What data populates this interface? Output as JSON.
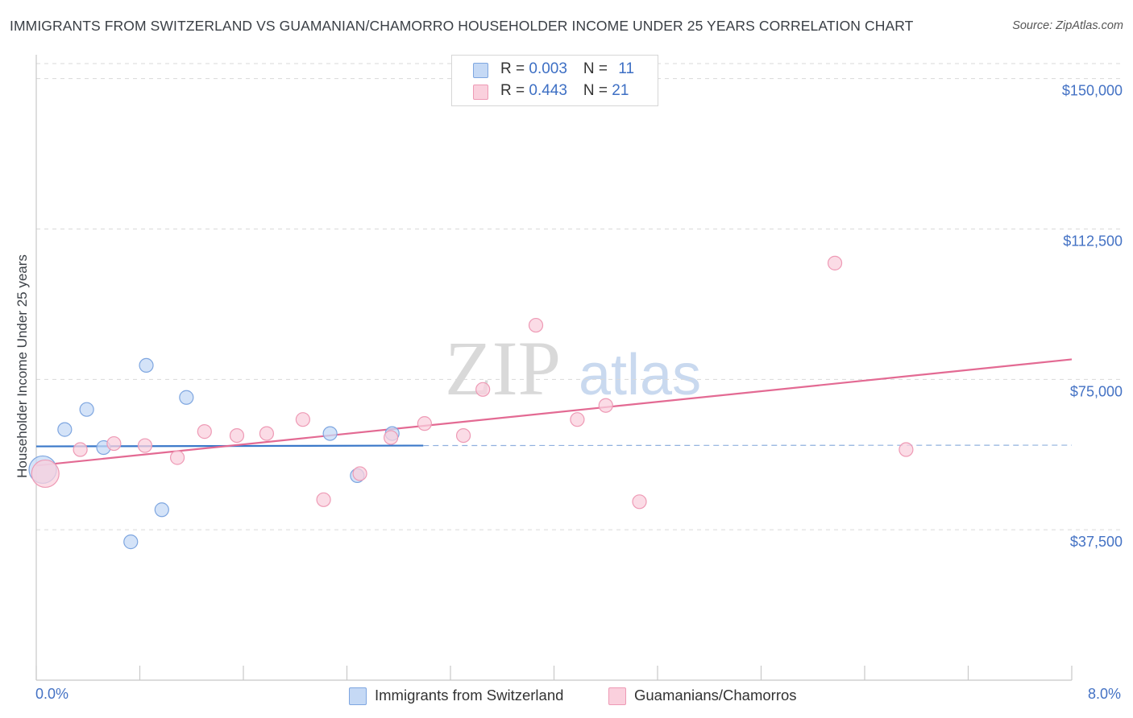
{
  "title": "IMMIGRANTS FROM SWITZERLAND VS GUAMANIAN/CHAMORRO HOUSEHOLDER INCOME UNDER 25 YEARS CORRELATION CHART",
  "source": "Source: ZipAtlas.com",
  "watermark": {
    "zip": "ZIP",
    "atlas": "atlas"
  },
  "colors": {
    "blue_fill": "#c5d9f5",
    "blue_stroke": "#7ea6e0",
    "blue_line": "#3a78c9",
    "pink_fill": "#fad0dd",
    "pink_stroke": "#ee9ab5",
    "pink_line": "#e36a93",
    "axis_text": "#4472c4",
    "grid": "#d9d9d9"
  },
  "legend": {
    "rows": [
      {
        "r_label": "R = ",
        "r_value": "0.003",
        "n_label": "N = ",
        "n_value": "11"
      },
      {
        "r_label": "R = ",
        "r_value": "0.443",
        "n_label": "N = ",
        "n_value": "21"
      }
    ]
  },
  "bottom_legend": {
    "series1": "Immigrants from Switzerland",
    "series2": "Guamanians/Chamorros"
  },
  "chart_data": {
    "type": "scatter",
    "title": "IMMIGRANTS FROM SWITZERLAND VS GUAMANIAN/CHAMORRO HOUSEHOLDER INCOME UNDER 25 YEARS CORRELATION CHART",
    "xlabel": "",
    "ylabel": "Householder Income Under 25 years",
    "xlim": [
      0.0,
      8.0
    ],
    "ylim": [
      0,
      153750
    ],
    "x_tick_labels": [
      "0.0%",
      "8.0%"
    ],
    "y_ticks": [
      37500,
      75000,
      112500,
      150000
    ],
    "y_tick_labels": [
      "$37,500",
      "$75,000",
      "$112,500",
      "$150,000"
    ],
    "grid": true,
    "series": [
      {
        "name": "Immigrants from Switzerland",
        "R": 0.003,
        "N": 11,
        "points": [
          {
            "x": 0.05,
            "y": 52500,
            "size": "large"
          },
          {
            "x": 0.22,
            "y": 62500
          },
          {
            "x": 0.39,
            "y": 67500
          },
          {
            "x": 0.52,
            "y": 58000
          },
          {
            "x": 0.73,
            "y": 34500
          },
          {
            "x": 0.85,
            "y": 78500
          },
          {
            "x": 0.97,
            "y": 42500
          },
          {
            "x": 1.16,
            "y": 70500
          },
          {
            "x": 2.27,
            "y": 61500
          },
          {
            "x": 2.48,
            "y": 51000
          },
          {
            "x": 2.75,
            "y": 61500
          }
        ],
        "trend": {
          "x0": 0.0,
          "y0": 58300,
          "x1": 2.99,
          "y1": 58500,
          "extended_x1": 8.0,
          "extended_y1": 58600
        }
      },
      {
        "name": "Guamanians/Chamorros",
        "R": 0.443,
        "N": 21,
        "points": [
          {
            "x": 0.07,
            "y": 51500,
            "size": "large"
          },
          {
            "x": 0.34,
            "y": 57500
          },
          {
            "x": 0.6,
            "y": 59000
          },
          {
            "x": 0.84,
            "y": 58500
          },
          {
            "x": 1.09,
            "y": 55500
          },
          {
            "x": 1.3,
            "y": 62000
          },
          {
            "x": 1.55,
            "y": 61000
          },
          {
            "x": 1.78,
            "y": 61500
          },
          {
            "x": 2.06,
            "y": 65000
          },
          {
            "x": 2.22,
            "y": 45000
          },
          {
            "x": 2.5,
            "y": 51500
          },
          {
            "x": 2.74,
            "y": 60500
          },
          {
            "x": 3.0,
            "y": 64000
          },
          {
            "x": 3.3,
            "y": 61000
          },
          {
            "x": 3.45,
            "y": 72500
          },
          {
            "x": 3.86,
            "y": 88500
          },
          {
            "x": 4.18,
            "y": 65000
          },
          {
            "x": 4.4,
            "y": 68500
          },
          {
            "x": 4.66,
            "y": 44500
          },
          {
            "x": 6.17,
            "y": 104000
          },
          {
            "x": 6.72,
            "y": 57500
          }
        ],
        "trend": {
          "x0": 0.0,
          "y0": 53500,
          "x1": 8.0,
          "y1": 80000
        }
      }
    ]
  }
}
